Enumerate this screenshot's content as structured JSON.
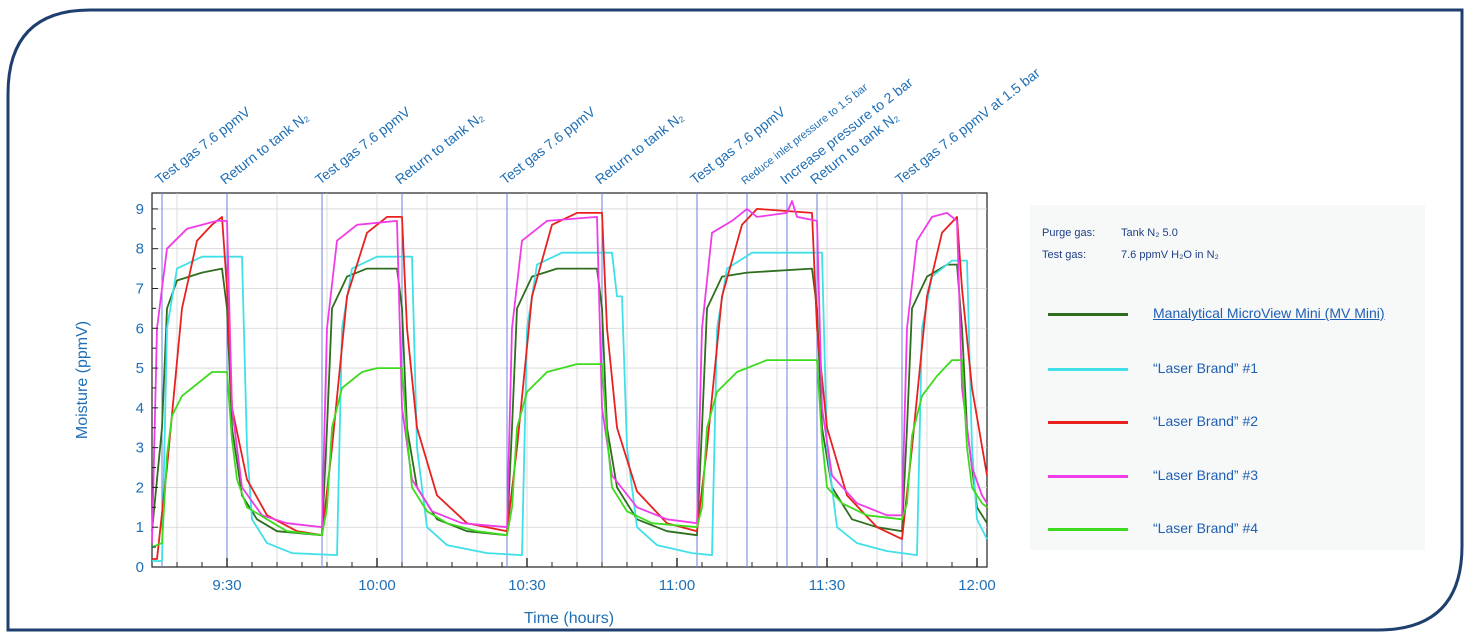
{
  "chart_data": {
    "type": "line",
    "title": "",
    "xlabel": "Time (hours)",
    "ylabel": "Moisture (ppmV)",
    "ylim": [
      0,
      9.4
    ],
    "xlim": [
      "9:15",
      "12:02"
    ],
    "x_tick_labels": [
      "9:30",
      "10:00",
      "10:30",
      "11:00",
      "11:30",
      "12:00"
    ],
    "y_tick_labels": [
      "0",
      "1",
      "2",
      "3",
      "4",
      "5",
      "6",
      "7",
      "8",
      "9"
    ],
    "grid": true,
    "legend_position": "right",
    "info": [
      {
        "label": "Purge gas:",
        "value": "Tank N₂ 5.0"
      },
      {
        "label": "Test gas:",
        "value": "7.6 ppmV H₂O in N₂"
      }
    ],
    "annotations": [
      {
        "time": "9:17",
        "text": "Test gas 7.6 ppmV"
      },
      {
        "time": "9:30",
        "text": "Return to tank N₂"
      },
      {
        "time": "9:49",
        "text": "Test gas 7.6 ppmV"
      },
      {
        "time": "10:05",
        "text": "Return to tank N₂"
      },
      {
        "time": "10:26",
        "text": "Test gas 7.6 ppmV"
      },
      {
        "time": "10:45",
        "text": "Return to tank N₂"
      },
      {
        "time": "11:04",
        "text": "Test gas 7.6 ppmV"
      },
      {
        "time": "11:14",
        "text": "Reduce inlet pressure to 1.5 bar"
      },
      {
        "time": "11:22",
        "text": "Increase pressure to 2 bar"
      },
      {
        "time": "11:28",
        "text": "Return to tank N₂"
      },
      {
        "time": "11:45",
        "text": "Test gas 7.6 ppmV at 1.5 bar"
      }
    ],
    "series": [
      {
        "name": "Manalytical MicroView Mini (MV Mini)",
        "color": "#2e6e1e",
        "points": [
          [
            "9:15",
            0.9
          ],
          [
            "9:17",
            3.5
          ],
          [
            "9:18",
            6.5
          ],
          [
            "9:20",
            7.2
          ],
          [
            "9:25",
            7.4
          ],
          [
            "9:29",
            7.5
          ],
          [
            "9:30",
            6.5
          ],
          [
            "9:31",
            3.5
          ],
          [
            "9:33",
            1.8
          ],
          [
            "9:36",
            1.2
          ],
          [
            "9:40",
            0.9
          ],
          [
            "9:49",
            0.8
          ],
          [
            "9:50",
            3.5
          ],
          [
            "9:51",
            6.5
          ],
          [
            "9:54",
            7.3
          ],
          [
            "9:58",
            7.5
          ],
          [
            "10:04",
            7.5
          ],
          [
            "10:05",
            6.5
          ],
          [
            "10:06",
            3.5
          ],
          [
            "10:08",
            2.0
          ],
          [
            "10:12",
            1.2
          ],
          [
            "10:18",
            0.9
          ],
          [
            "10:26",
            0.8
          ],
          [
            "10:27",
            3.5
          ],
          [
            "10:28",
            6.5
          ],
          [
            "10:31",
            7.3
          ],
          [
            "10:36",
            7.5
          ],
          [
            "10:44",
            7.5
          ],
          [
            "10:45",
            6.5
          ],
          [
            "10:46",
            3.5
          ],
          [
            "10:48",
            2.0
          ],
          [
            "10:52",
            1.2
          ],
          [
            "10:58",
            0.9
          ],
          [
            "11:04",
            0.8
          ],
          [
            "11:05",
            3.5
          ],
          [
            "11:06",
            6.5
          ],
          [
            "11:09",
            7.3
          ],
          [
            "11:14",
            7.4
          ],
          [
            "11:27",
            7.5
          ],
          [
            "11:28",
            6.5
          ],
          [
            "11:29",
            3.5
          ],
          [
            "11:31",
            2.0
          ],
          [
            "11:35",
            1.2
          ],
          [
            "11:40",
            1.0
          ],
          [
            "11:45",
            0.9
          ],
          [
            "11:46",
            3.5
          ],
          [
            "11:47",
            6.5
          ],
          [
            "11:50",
            7.3
          ],
          [
            "11:54",
            7.6
          ],
          [
            "11:56",
            7.6
          ],
          [
            "11:57",
            6.0
          ],
          [
            "11:58",
            3.5
          ],
          [
            "12:00",
            1.5
          ],
          [
            "12:02",
            1.1
          ]
        ]
      },
      {
        "name": "“Laser Brand” #1",
        "color": "#3fe0e8",
        "points": [
          [
            "9:15",
            0.15
          ],
          [
            "9:17",
            0.15
          ],
          [
            "9:18",
            6.0
          ],
          [
            "9:20",
            7.5
          ],
          [
            "9:25",
            7.8
          ],
          [
            "9:33",
            7.8
          ],
          [
            "9:34",
            3.0
          ],
          [
            "9:35",
            1.2
          ],
          [
            "9:38",
            0.6
          ],
          [
            "9:43",
            0.35
          ],
          [
            "9:52",
            0.3
          ],
          [
            "9:53",
            6.0
          ],
          [
            "9:55",
            7.5
          ],
          [
            "10:00",
            7.8
          ],
          [
            "10:07",
            7.8
          ],
          [
            "10:08",
            3.0
          ],
          [
            "10:10",
            1.0
          ],
          [
            "10:14",
            0.55
          ],
          [
            "10:22",
            0.35
          ],
          [
            "10:29",
            0.3
          ],
          [
            "10:30",
            6.0
          ],
          [
            "10:32",
            7.6
          ],
          [
            "10:37",
            7.9
          ],
          [
            "10:47",
            7.9
          ],
          [
            "10:48",
            6.8
          ],
          [
            "10:49",
            6.8
          ],
          [
            "10:50",
            3.0
          ],
          [
            "10:52",
            1.0
          ],
          [
            "10:56",
            0.55
          ],
          [
            "11:03",
            0.35
          ],
          [
            "11:07",
            0.3
          ],
          [
            "11:08",
            6.0
          ],
          [
            "11:10",
            7.5
          ],
          [
            "11:15",
            7.9
          ],
          [
            "11:29",
            7.9
          ],
          [
            "11:30",
            3.0
          ],
          [
            "11:32",
            1.0
          ],
          [
            "11:36",
            0.6
          ],
          [
            "11:42",
            0.4
          ],
          [
            "11:48",
            0.3
          ],
          [
            "11:49",
            6.0
          ],
          [
            "11:51",
            7.3
          ],
          [
            "11:55",
            7.7
          ],
          [
            "11:58",
            7.7
          ],
          [
            "11:59",
            3.0
          ],
          [
            "12:00",
            1.2
          ],
          [
            "12:02",
            0.7
          ]
        ]
      },
      {
        "name": "“Laser Brand” #2",
        "color": "#e8211f",
        "points": [
          [
            "9:15",
            0.2
          ],
          [
            "9:16",
            0.2
          ],
          [
            "9:18",
            2.5
          ],
          [
            "9:21",
            6.5
          ],
          [
            "9:24",
            8.2
          ],
          [
            "9:27",
            8.6
          ],
          [
            "9:29",
            8.8
          ],
          [
            "9:30",
            7.0
          ],
          [
            "9:31",
            4.0
          ],
          [
            "9:34",
            2.2
          ],
          [
            "9:38",
            1.3
          ],
          [
            "9:44",
            0.9
          ],
          [
            "9:49",
            0.8
          ],
          [
            "9:51",
            3.0
          ],
          [
            "9:54",
            6.8
          ],
          [
            "9:58",
            8.4
          ],
          [
            "10:02",
            8.8
          ],
          [
            "10:05",
            8.8
          ],
          [
            "10:06",
            6.0
          ],
          [
            "10:08",
            3.5
          ],
          [
            "10:12",
            1.8
          ],
          [
            "10:18",
            1.1
          ],
          [
            "10:26",
            0.9
          ],
          [
            "10:28",
            3.0
          ],
          [
            "10:31",
            6.8
          ],
          [
            "10:35",
            8.6
          ],
          [
            "10:40",
            8.9
          ],
          [
            "10:45",
            8.9
          ],
          [
            "10:46",
            6.0
          ],
          [
            "10:48",
            3.5
          ],
          [
            "10:52",
            1.9
          ],
          [
            "10:58",
            1.1
          ],
          [
            "11:04",
            0.9
          ],
          [
            "11:06",
            3.0
          ],
          [
            "11:09",
            6.8
          ],
          [
            "11:13",
            8.6
          ],
          [
            "11:16",
            9.0
          ],
          [
            "11:27",
            8.9
          ],
          [
            "11:28",
            6.0
          ],
          [
            "11:30",
            3.5
          ],
          [
            "11:34",
            1.8
          ],
          [
            "11:40",
            1.0
          ],
          [
            "11:45",
            0.7
          ],
          [
            "11:47",
            3.0
          ],
          [
            "11:50",
            6.8
          ],
          [
            "11:53",
            8.4
          ],
          [
            "11:56",
            8.8
          ],
          [
            "11:57",
            7.0
          ],
          [
            "11:59",
            4.5
          ],
          [
            "12:02",
            2.3
          ]
        ]
      },
      {
        "name": "“Laser Brand” #3",
        "color": "#f03ce8",
        "points": [
          [
            "9:15",
            0.6
          ],
          [
            "9:16",
            6.0
          ],
          [
            "9:18",
            8.0
          ],
          [
            "9:22",
            8.5
          ],
          [
            "9:28",
            8.7
          ],
          [
            "9:30",
            8.7
          ],
          [
            "9:31",
            4.0
          ],
          [
            "9:33",
            2.0
          ],
          [
            "9:37",
            1.3
          ],
          [
            "9:42",
            1.1
          ],
          [
            "9:49",
            1.0
          ],
          [
            "9:50",
            6.0
          ],
          [
            "9:52",
            8.2
          ],
          [
            "9:56",
            8.6
          ],
          [
            "10:04",
            8.7
          ],
          [
            "10:05",
            4.0
          ],
          [
            "10:07",
            2.2
          ],
          [
            "10:11",
            1.4
          ],
          [
            "10:17",
            1.1
          ],
          [
            "10:26",
            1.0
          ],
          [
            "10:27",
            6.0
          ],
          [
            "10:29",
            8.2
          ],
          [
            "10:34",
            8.7
          ],
          [
            "10:44",
            8.8
          ],
          [
            "10:45",
            4.0
          ],
          [
            "10:47",
            2.3
          ],
          [
            "10:52",
            1.5
          ],
          [
            "10:58",
            1.2
          ],
          [
            "11:04",
            1.1
          ],
          [
            "11:05",
            6.0
          ],
          [
            "11:07",
            8.4
          ],
          [
            "11:11",
            8.7
          ],
          [
            "11:14",
            9.0
          ],
          [
            "11:16",
            8.8
          ],
          [
            "11:22",
            8.9
          ],
          [
            "11:23",
            9.2
          ],
          [
            "11:24",
            8.8
          ],
          [
            "11:28",
            8.7
          ],
          [
            "11:29",
            4.0
          ],
          [
            "11:31",
            2.3
          ],
          [
            "11:36",
            1.6
          ],
          [
            "11:42",
            1.3
          ],
          [
            "11:45",
            1.3
          ],
          [
            "11:46",
            6.0
          ],
          [
            "11:48",
            8.2
          ],
          [
            "11:51",
            8.8
          ],
          [
            "11:54",
            8.9
          ],
          [
            "11:56",
            8.7
          ],
          [
            "11:57",
            4.5
          ],
          [
            "11:59",
            2.5
          ],
          [
            "12:01",
            1.8
          ],
          [
            "12:02",
            1.6
          ]
        ]
      },
      {
        "name": "“Laser Brand” #4",
        "color": "#3ddb1e",
        "points": [
          [
            "9:15",
            0.5
          ],
          [
            "9:17",
            0.6
          ],
          [
            "9:18",
            2.8
          ],
          [
            "9:19",
            3.8
          ],
          [
            "9:21",
            4.3
          ],
          [
            "9:24",
            4.6
          ],
          [
            "9:27",
            4.9
          ],
          [
            "9:30",
            4.9
          ],
          [
            "9:31",
            3.2
          ],
          [
            "9:32",
            2.2
          ],
          [
            "9:34",
            1.5
          ],
          [
            "9:38",
            1.2
          ],
          [
            "9:42",
            0.9
          ],
          [
            "9:49",
            0.8
          ],
          [
            "9:50",
            1.5
          ],
          [
            "9:51",
            3.5
          ],
          [
            "9:53",
            4.5
          ],
          [
            "9:57",
            4.9
          ],
          [
            "10:00",
            5.0
          ],
          [
            "10:05",
            5.0
          ],
          [
            "10:06",
            3.3
          ],
          [
            "10:07",
            2.0
          ],
          [
            "10:10",
            1.4
          ],
          [
            "10:14",
            1.1
          ],
          [
            "10:20",
            0.9
          ],
          [
            "10:26",
            0.8
          ],
          [
            "10:27",
            1.5
          ],
          [
            "10:28",
            3.5
          ],
          [
            "10:30",
            4.4
          ],
          [
            "10:34",
            4.9
          ],
          [
            "10:40",
            5.1
          ],
          [
            "10:45",
            5.1
          ],
          [
            "10:46",
            3.3
          ],
          [
            "10:47",
            2.0
          ],
          [
            "10:50",
            1.4
          ],
          [
            "10:55",
            1.1
          ],
          [
            "11:04",
            1.0
          ],
          [
            "11:05",
            1.5
          ],
          [
            "11:06",
            3.5
          ],
          [
            "11:08",
            4.4
          ],
          [
            "11:12",
            4.9
          ],
          [
            "11:18",
            5.2
          ],
          [
            "11:28",
            5.2
          ],
          [
            "11:29",
            3.2
          ],
          [
            "11:30",
            2.0
          ],
          [
            "11:33",
            1.6
          ],
          [
            "11:38",
            1.3
          ],
          [
            "11:45",
            1.2
          ],
          [
            "11:46",
            1.6
          ],
          [
            "11:47",
            3.3
          ],
          [
            "11:49",
            4.3
          ],
          [
            "11:52",
            4.8
          ],
          [
            "11:55",
            5.2
          ],
          [
            "11:57",
            5.2
          ],
          [
            "11:58",
            3.0
          ],
          [
            "11:59",
            2.0
          ],
          [
            "12:01",
            1.6
          ],
          [
            "12:02",
            1.5
          ]
        ]
      }
    ]
  }
}
